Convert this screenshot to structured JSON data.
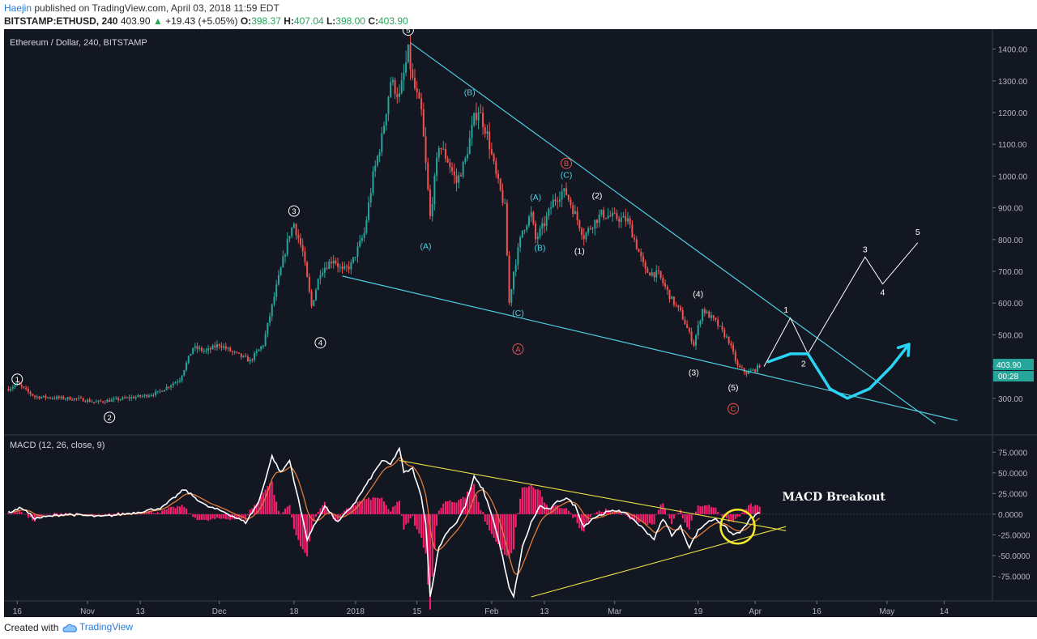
{
  "header": {
    "author": "Haejin",
    "published_text": "published on TradingView.com, April 03, 2018 11:59 EDT",
    "symbol": "BITSTAMP:ETHUSD, 240",
    "last": "403.90",
    "arrow": "▲",
    "change": "+19.43 (+5.05%)",
    "o_label": "O:",
    "o_value": "398.37",
    "h_label": "H:",
    "h_value": "407.04",
    "l_label": "L:",
    "l_value": "398.00",
    "c_label": "C:",
    "c_value": "403.90"
  },
  "footer": {
    "created_with": "Created with",
    "brand": "TradingView"
  },
  "chart_data": [
    {
      "type": "candlestick",
      "title": "Ethereum / Dollar, 240, BITSTAMP",
      "colors": {
        "background": "#131722",
        "up": "#26a69a",
        "down": "#ef5350",
        "trendline": "#4dd0e1",
        "projection": "#ffffff",
        "cyan_arrow": "#29d4f5"
      },
      "y_axis": {
        "min": 200,
        "max": 1450,
        "ticks": [
          300,
          400,
          500,
          600,
          700,
          800,
          900,
          1000,
          1100,
          1200,
          1300,
          1400
        ],
        "tick_labels": [
          "300.00",
          "400.00",
          "500.00",
          "600.00",
          "700.00",
          "800.00",
          "900.00",
          "1000.00",
          "1100.00",
          "1200.00",
          "1300.00",
          "1400.00"
        ]
      },
      "x_axis": {
        "tick_labels": [
          "16",
          "Nov",
          "13",
          "Dec",
          "18",
          "2018",
          "15",
          "Feb",
          "13",
          "Mar",
          "19",
          "Apr",
          "16",
          "May",
          "14"
        ],
        "tick_days": [
          -77,
          -61,
          -49,
          -31,
          -14,
          0,
          14,
          31,
          43,
          59,
          78,
          91,
          105,
          121,
          134
        ],
        "x_range_days": [
          -80,
          145
        ]
      },
      "price_series_anchors": [
        {
          "day": -79,
          "price": 330
        },
        {
          "day": -77,
          "price": 345
        },
        {
          "day": -73,
          "price": 305
        },
        {
          "day": -63,
          "price": 298
        },
        {
          "day": -59,
          "price": 288
        },
        {
          "day": -55,
          "price": 295
        },
        {
          "day": -48,
          "price": 308
        },
        {
          "day": -45,
          "price": 318
        },
        {
          "day": -40,
          "price": 360
        },
        {
          "day": -37,
          "price": 460
        },
        {
          "day": -34,
          "price": 448
        },
        {
          "day": -31,
          "price": 470
        },
        {
          "day": -28,
          "price": 445
        },
        {
          "day": -24,
          "price": 418
        },
        {
          "day": -21,
          "price": 470
        },
        {
          "day": -18,
          "price": 650
        },
        {
          "day": -15,
          "price": 820
        },
        {
          "day": -14,
          "price": 850
        },
        {
          "day": -12,
          "price": 760
        },
        {
          "day": -10,
          "price": 590
        },
        {
          "day": -8,
          "price": 700
        },
        {
          "day": -5,
          "price": 740
        },
        {
          "day": -3,
          "price": 700
        },
        {
          "day": -1,
          "price": 720
        },
        {
          "day": 2,
          "price": 820
        },
        {
          "day": 4,
          "price": 1000
        },
        {
          "day": 6,
          "price": 1120
        },
        {
          "day": 8,
          "price": 1300
        },
        {
          "day": 10,
          "price": 1250
        },
        {
          "day": 12,
          "price": 1390
        },
        {
          "day": 13,
          "price": 1300
        },
        {
          "day": 15,
          "price": 1200
        },
        {
          "day": 17,
          "price": 870
        },
        {
          "day": 19,
          "price": 1100
        },
        {
          "day": 21,
          "price": 1050
        },
        {
          "day": 23,
          "price": 980
        },
        {
          "day": 25,
          "price": 1050
        },
        {
          "day": 27,
          "price": 1180
        },
        {
          "day": 28,
          "price": 1210
        },
        {
          "day": 30,
          "price": 1130
        },
        {
          "day": 32,
          "price": 1000
        },
        {
          "day": 34,
          "price": 900
        },
        {
          "day": 35,
          "price": 600
        },
        {
          "day": 36,
          "price": 700
        },
        {
          "day": 38,
          "price": 830
        },
        {
          "day": 40,
          "price": 880
        },
        {
          "day": 41,
          "price": 800
        },
        {
          "day": 43,
          "price": 850
        },
        {
          "day": 45,
          "price": 920
        },
        {
          "day": 47,
          "price": 950
        },
        {
          "day": 48,
          "price": 945
        },
        {
          "day": 50,
          "price": 880
        },
        {
          "day": 52,
          "price": 810
        },
        {
          "day": 54,
          "price": 850
        },
        {
          "day": 56,
          "price": 880
        },
        {
          "day": 59,
          "price": 870
        },
        {
          "day": 62,
          "price": 860
        },
        {
          "day": 64,
          "price": 780
        },
        {
          "day": 66,
          "price": 700
        },
        {
          "day": 69,
          "price": 690
        },
        {
          "day": 72,
          "price": 610
        },
        {
          "day": 74,
          "price": 570
        },
        {
          "day": 77,
          "price": 470
        },
        {
          "day": 79,
          "price": 580
        },
        {
          "day": 82,
          "price": 540
        },
        {
          "day": 85,
          "price": 480
        },
        {
          "day": 87,
          "price": 400
        },
        {
          "day": 89,
          "price": 380
        },
        {
          "day": 91,
          "price": 390
        },
        {
          "day": 92,
          "price": 404
        }
      ],
      "last_price_label": "403.90",
      "countdown_label": "00:28",
      "trendlines": [
        {
          "from": {
            "day": 12.5,
            "price": 1420
          },
          "to": {
            "day": 132,
            "price": 220
          }
        },
        {
          "from": {
            "day": -3,
            "price": 685
          },
          "to": {
            "day": 137,
            "price": 230
          }
        }
      ],
      "projection_path": [
        {
          "day": 93,
          "price": 400
        },
        {
          "day": 99,
          "price": 553
        },
        {
          "day": 103,
          "price": 440
        },
        {
          "day": 116,
          "price": 745
        },
        {
          "day": 120,
          "price": 660
        },
        {
          "day": 128,
          "price": 790
        }
      ],
      "cyan_projection": [
        {
          "day": 94,
          "price": 415
        },
        {
          "day": 99,
          "price": 440
        },
        {
          "day": 103,
          "price": 440
        },
        {
          "day": 108,
          "price": 330
        },
        {
          "day": 112,
          "price": 300
        },
        {
          "day": 117,
          "price": 330
        },
        {
          "day": 122,
          "price": 400
        },
        {
          "day": 126,
          "price": 470
        }
      ],
      "wave_labels": [
        {
          "text": "1",
          "day": -77,
          "price": 360,
          "style": "circle-white"
        },
        {
          "text": "2",
          "day": -56,
          "price": 240,
          "style": "circle-white"
        },
        {
          "text": "3",
          "day": -14,
          "price": 890,
          "style": "circle-white"
        },
        {
          "text": "4",
          "day": -8,
          "price": 475,
          "style": "circle-white"
        },
        {
          "text": "5",
          "day": 12,
          "price": 1460,
          "style": "circle-white"
        },
        {
          "text": "(A)",
          "day": 16,
          "price": 780,
          "style": "text-cyan"
        },
        {
          "text": "(B)",
          "day": 26,
          "price": 1265,
          "style": "text-cyan"
        },
        {
          "text": "(C)",
          "day": 37,
          "price": 570,
          "style": "text-cyan"
        },
        {
          "text": "A",
          "day": 37,
          "price": 455,
          "style": "circle-red"
        },
        {
          "text": "(A)",
          "day": 41,
          "price": 935,
          "style": "text-cyan"
        },
        {
          "text": "(B)",
          "day": 42,
          "price": 775,
          "style": "text-cyan"
        },
        {
          "text": "(C)",
          "day": 48,
          "price": 1005,
          "style": "text-cyan"
        },
        {
          "text": "B",
          "day": 48,
          "price": 1040,
          "style": "circle-red"
        },
        {
          "text": "(2)",
          "day": 55,
          "price": 940,
          "style": "text-white"
        },
        {
          "text": "(1)",
          "day": 51,
          "price": 765,
          "style": "text-white"
        },
        {
          "text": "(3)",
          "day": 77,
          "price": 383,
          "style": "text-white"
        },
        {
          "text": "(4)",
          "day": 78,
          "price": 630,
          "style": "text-white"
        },
        {
          "text": "(5)",
          "day": 86,
          "price": 335,
          "style": "text-white"
        },
        {
          "text": "C",
          "day": 86,
          "price": 267,
          "style": "circle-red"
        },
        {
          "text": "1",
          "day": 98,
          "price": 580,
          "style": "text-white"
        },
        {
          "text": "2",
          "day": 102,
          "price": 410,
          "style": "text-white"
        },
        {
          "text": "3",
          "day": 116,
          "price": 770,
          "style": "text-white"
        },
        {
          "text": "4",
          "day": 120,
          "price": 635,
          "style": "text-white"
        },
        {
          "text": "5",
          "day": 128,
          "price": 825,
          "style": "text-white"
        }
      ]
    },
    {
      "type": "line",
      "title": "MACD (12, 26, close, 9)",
      "y_axis": {
        "min": -100,
        "max": 90,
        "ticks": [
          75,
          50,
          25,
          0,
          -25,
          -50,
          -75
        ],
        "tick_labels": [
          "75.0000",
          "50.0000",
          "25.0000",
          "0.0000",
          "-25.0000",
          "-50.0000",
          "-75.0000"
        ]
      },
      "annotation": "MACD Breakout",
      "colors": {
        "macd": "#ffffff",
        "signal": "#e07b39",
        "histogram": "#ff1f70",
        "trendline": "#e8e044",
        "circle": "#f5e92a"
      },
      "macd_anchors": [
        {
          "day": -79,
          "value": 2
        },
        {
          "day": -76,
          "value": 8
        },
        {
          "day": -73,
          "value": -5
        },
        {
          "day": -66,
          "value": 0
        },
        {
          "day": -58,
          "value": -3
        },
        {
          "day": -50,
          "value": 2
        },
        {
          "day": -44,
          "value": 8
        },
        {
          "day": -39,
          "value": 30
        },
        {
          "day": -34,
          "value": 10
        },
        {
          "day": -30,
          "value": 3
        },
        {
          "day": -25,
          "value": -10
        },
        {
          "day": -22,
          "value": 15
        },
        {
          "day": -19,
          "value": 70
        },
        {
          "day": -17,
          "value": 50
        },
        {
          "day": -15,
          "value": 65
        },
        {
          "day": -11,
          "value": -30
        },
        {
          "day": -7,
          "value": 10
        },
        {
          "day": -4,
          "value": -10
        },
        {
          "day": 0,
          "value": 15
        },
        {
          "day": 3,
          "value": 40
        },
        {
          "day": 6,
          "value": 65
        },
        {
          "day": 8,
          "value": 60
        },
        {
          "day": 10,
          "value": 80
        },
        {
          "day": 11,
          "value": 50
        },
        {
          "day": 13,
          "value": 55
        },
        {
          "day": 15,
          "value": 20
        },
        {
          "day": 16,
          "value": -10
        },
        {
          "day": 17,
          "value": -100
        },
        {
          "day": 19,
          "value": -40
        },
        {
          "day": 21,
          "value": -20
        },
        {
          "day": 23,
          "value": -10
        },
        {
          "day": 25,
          "value": 10
        },
        {
          "day": 27,
          "value": 45
        },
        {
          "day": 29,
          "value": 30
        },
        {
          "day": 31,
          "value": 0
        },
        {
          "day": 33,
          "value": -40
        },
        {
          "day": 35,
          "value": -90
        },
        {
          "day": 36,
          "value": -100
        },
        {
          "day": 38,
          "value": -40
        },
        {
          "day": 40,
          "value": -10
        },
        {
          "day": 42,
          "value": 10
        },
        {
          "day": 44,
          "value": 5
        },
        {
          "day": 46,
          "value": 15
        },
        {
          "day": 48,
          "value": 20
        },
        {
          "day": 50,
          "value": 10
        },
        {
          "day": 52,
          "value": -15
        },
        {
          "day": 54,
          "value": -5
        },
        {
          "day": 57,
          "value": 2
        },
        {
          "day": 60,
          "value": 5
        },
        {
          "day": 63,
          "value": -5
        },
        {
          "day": 66,
          "value": -20
        },
        {
          "day": 68,
          "value": -30
        },
        {
          "day": 70,
          "value": -5
        },
        {
          "day": 72,
          "value": -25
        },
        {
          "day": 74,
          "value": -15
        },
        {
          "day": 76,
          "value": -40
        },
        {
          "day": 78,
          "value": -20
        },
        {
          "day": 80,
          "value": -10
        },
        {
          "day": 82,
          "value": -5
        },
        {
          "day": 84,
          "value": -15
        },
        {
          "day": 86,
          "value": -25
        },
        {
          "day": 88,
          "value": -20
        },
        {
          "day": 90,
          "value": -5
        },
        {
          "day": 92,
          "value": 2
        }
      ],
      "trendlines": [
        {
          "from": {
            "day": 10,
            "value": 65
          },
          "to": {
            "day": 98,
            "value": -20
          }
        },
        {
          "from": {
            "day": 40,
            "value": -100
          },
          "to": {
            "day": 98,
            "value": -15
          }
        }
      ],
      "breakout_circle": {
        "day": 87,
        "value": -15
      }
    }
  ]
}
